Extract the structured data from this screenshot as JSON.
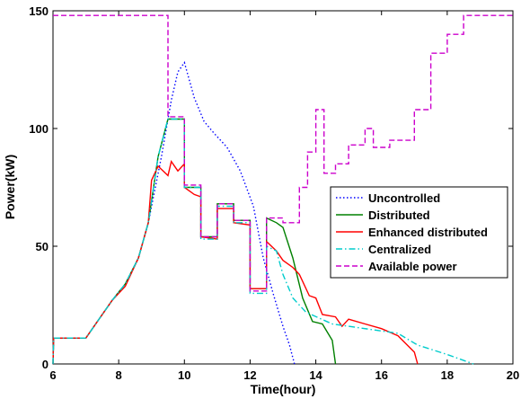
{
  "chart_data": {
    "type": "line",
    "title": "",
    "xlabel": "Time(hour)",
    "ylabel": "Power(kW)",
    "xlim": [
      6,
      20
    ],
    "ylim": [
      0,
      150
    ],
    "xticks": [
      6,
      8,
      10,
      12,
      14,
      16,
      18,
      20
    ],
    "yticks": [
      0,
      50,
      100,
      150
    ],
    "grid": false,
    "legend_position": "right",
    "series": [
      {
        "name": "Uncontrolled",
        "color": "#0000ff",
        "dash": "dotted",
        "points": [
          [
            6,
            0
          ],
          [
            6.02,
            11
          ],
          [
            7,
            11
          ],
          [
            7.3,
            17
          ],
          [
            7.8,
            27
          ],
          [
            8.2,
            34
          ],
          [
            8.6,
            45
          ],
          [
            8.9,
            60
          ],
          [
            9.3,
            88
          ],
          [
            9.6,
            112
          ],
          [
            9.8,
            124
          ],
          [
            10.0,
            128
          ],
          [
            10.3,
            113
          ],
          [
            10.6,
            103
          ],
          [
            10.9,
            98
          ],
          [
            11.3,
            92
          ],
          [
            11.7,
            82
          ],
          [
            12.1,
            67
          ],
          [
            12.4,
            45
          ],
          [
            12.7,
            30
          ],
          [
            13.0,
            16
          ],
          [
            13.2,
            8
          ],
          [
            13.35,
            0
          ]
        ]
      },
      {
        "name": "Distributed",
        "color": "#008000",
        "dash": "solid",
        "points": [
          [
            6,
            0
          ],
          [
            6.02,
            11
          ],
          [
            7,
            11
          ],
          [
            7.3,
            17
          ],
          [
            7.8,
            27
          ],
          [
            8.2,
            34
          ],
          [
            8.6,
            45
          ],
          [
            8.9,
            60
          ],
          [
            9.2,
            88
          ],
          [
            9.5,
            104
          ],
          [
            10.0,
            104
          ],
          [
            10.0,
            75
          ],
          [
            10.5,
            75
          ],
          [
            10.5,
            54
          ],
          [
            11.0,
            54
          ],
          [
            11.0,
            68
          ],
          [
            11.5,
            68
          ],
          [
            11.5,
            61
          ],
          [
            12.0,
            61
          ],
          [
            12.0,
            32
          ],
          [
            12.5,
            32
          ],
          [
            12.5,
            62
          ],
          [
            12.8,
            60
          ],
          [
            13.0,
            58
          ],
          [
            13.3,
            45
          ],
          [
            13.6,
            28
          ],
          [
            13.9,
            18
          ],
          [
            14.2,
            17
          ],
          [
            14.5,
            10
          ],
          [
            14.6,
            0
          ]
        ]
      },
      {
        "name": "Enhanced distributed",
        "color": "#ff0000",
        "dash": "solid",
        "points": [
          [
            6,
            0
          ],
          [
            6.02,
            11
          ],
          [
            7,
            11
          ],
          [
            7.3,
            17
          ],
          [
            7.8,
            27
          ],
          [
            8.2,
            33
          ],
          [
            8.6,
            45
          ],
          [
            8.9,
            60
          ],
          [
            9.0,
            78
          ],
          [
            9.2,
            84
          ],
          [
            9.5,
            80
          ],
          [
            9.6,
            86
          ],
          [
            9.8,
            82
          ],
          [
            10.0,
            85
          ],
          [
            10.0,
            75
          ],
          [
            10.3,
            72
          ],
          [
            10.5,
            71
          ],
          [
            10.5,
            54
          ],
          [
            11.0,
            53
          ],
          [
            11.0,
            66
          ],
          [
            11.5,
            66
          ],
          [
            11.5,
            60
          ],
          [
            12.0,
            59
          ],
          [
            12.0,
            32
          ],
          [
            12.5,
            32
          ],
          [
            12.5,
            52
          ],
          [
            12.8,
            48
          ],
          [
            13.0,
            44
          ],
          [
            13.3,
            41
          ],
          [
            13.5,
            38
          ],
          [
            13.8,
            29
          ],
          [
            14.0,
            28
          ],
          [
            14.2,
            21
          ],
          [
            14.6,
            20
          ],
          [
            14.8,
            16
          ],
          [
            15.0,
            19
          ],
          [
            15.5,
            17
          ],
          [
            16.0,
            15
          ],
          [
            16.5,
            12
          ],
          [
            17.0,
            5
          ],
          [
            17.1,
            0
          ]
        ]
      },
      {
        "name": "Centralized",
        "color": "#00cccc",
        "dash": "dashdot",
        "points": [
          [
            6,
            0
          ],
          [
            6.02,
            11
          ],
          [
            7,
            11
          ],
          [
            7.3,
            17
          ],
          [
            7.8,
            27
          ],
          [
            8.2,
            34
          ],
          [
            8.6,
            45
          ],
          [
            8.9,
            60
          ],
          [
            9.2,
            88
          ],
          [
            9.5,
            104
          ],
          [
            10.0,
            104
          ],
          [
            10.0,
            75
          ],
          [
            10.5,
            75
          ],
          [
            10.5,
            53
          ],
          [
            11.0,
            53
          ],
          [
            11.0,
            67
          ],
          [
            11.5,
            67
          ],
          [
            11.5,
            60
          ],
          [
            12.0,
            60
          ],
          [
            12.0,
            30
          ],
          [
            12.5,
            30
          ],
          [
            12.5,
            50
          ],
          [
            12.8,
            48
          ],
          [
            13.0,
            38
          ],
          [
            13.3,
            28
          ],
          [
            13.7,
            22
          ],
          [
            14.5,
            17
          ],
          [
            16.5,
            13
          ],
          [
            17.1,
            8
          ],
          [
            18.0,
            4
          ],
          [
            18.8,
            0
          ]
        ]
      },
      {
        "name": "Available power",
        "color": "#cc00cc",
        "dash": "dashed",
        "points": [
          [
            6,
            148
          ],
          [
            9.5,
            148
          ],
          [
            9.5,
            105
          ],
          [
            10,
            105
          ],
          [
            10,
            76
          ],
          [
            10.5,
            76
          ],
          [
            10.5,
            54
          ],
          [
            11,
            54
          ],
          [
            11,
            68
          ],
          [
            11.5,
            68
          ],
          [
            11.5,
            61
          ],
          [
            12,
            61
          ],
          [
            12,
            31
          ],
          [
            12.5,
            31
          ],
          [
            12.5,
            62
          ],
          [
            13,
            62
          ],
          [
            13,
            60
          ],
          [
            13.5,
            60
          ],
          [
            13.5,
            75
          ],
          [
            13.75,
            75
          ],
          [
            13.75,
            90
          ],
          [
            14,
            90
          ],
          [
            14,
            108
          ],
          [
            14.25,
            108
          ],
          [
            14.25,
            81
          ],
          [
            14.6,
            81
          ],
          [
            14.6,
            85
          ],
          [
            15,
            85
          ],
          [
            15,
            93
          ],
          [
            15.5,
            93
          ],
          [
            15.5,
            100
          ],
          [
            15.75,
            100
          ],
          [
            15.75,
            92
          ],
          [
            16.25,
            92
          ],
          [
            16.25,
            95
          ],
          [
            17,
            95
          ],
          [
            17,
            108
          ],
          [
            17.5,
            108
          ],
          [
            17.5,
            132
          ],
          [
            18,
            132
          ],
          [
            18,
            140
          ],
          [
            18.5,
            140
          ],
          [
            18.5,
            148
          ],
          [
            20,
            148
          ]
        ]
      }
    ]
  }
}
